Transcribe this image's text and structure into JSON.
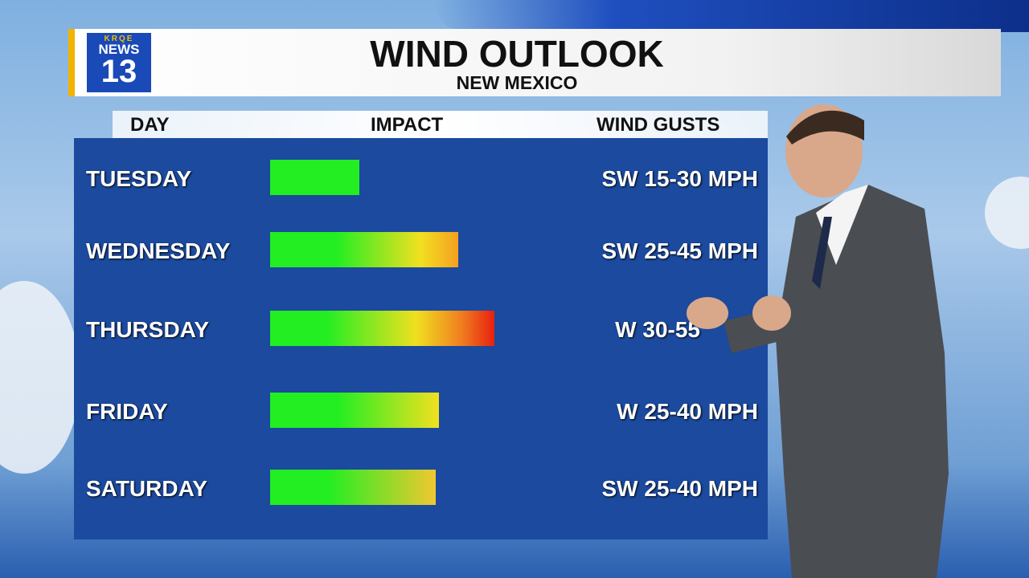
{
  "header": {
    "logo": {
      "brand": "KRQE",
      "name": "NEWS",
      "number": "13"
    },
    "title": "WIND OUTLOOK",
    "subtitle": "NEW MEXICO"
  },
  "table": {
    "columns": [
      "DAY",
      "IMPACT",
      "WIND GUSTS"
    ],
    "rows": [
      [
        "TUESDAY",
        "SW 15-30 MPH"
      ],
      [
        "WEDNESDAY",
        "SW 25-45 MPH"
      ],
      [
        "THURSDAY",
        "W 30-55"
      ],
      [
        "FRIDAY",
        "W 25-40 MPH"
      ],
      [
        "SATURDAY",
        "SW 25-40 MPH"
      ]
    ]
  }
}
